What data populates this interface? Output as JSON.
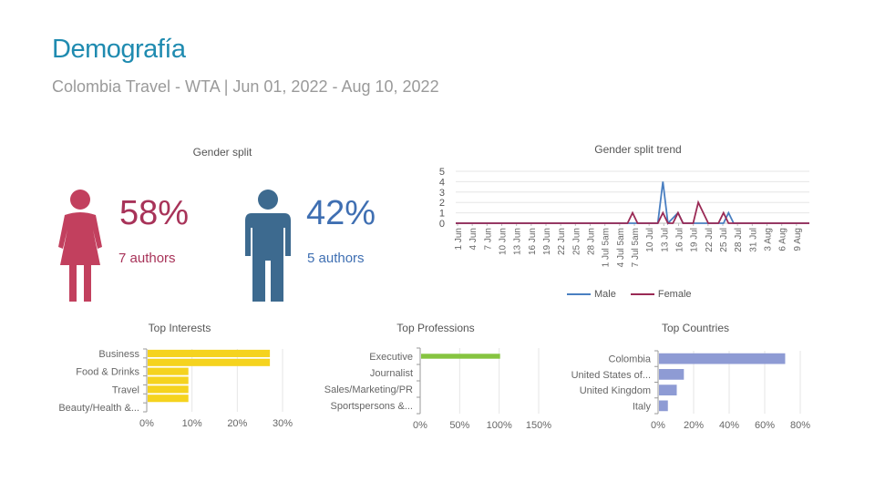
{
  "header": {
    "title": "Demografía",
    "subtitle": "Colombia Travel - WTA | Jun 01, 2022 - Aug 10, 2022"
  },
  "colors": {
    "female": "#c2405e",
    "male": "#3d6a8f",
    "female_text": "#a83359",
    "male_text": "#3f6fb2",
    "line_male": "#4a7fc1",
    "line_female": "#9a2a55",
    "interests_bar": "#f5d31e",
    "professions_bar": "#86c440",
    "countries_bar": "#8e9bd4"
  },
  "gender_split": {
    "title": "Gender split",
    "female": {
      "percent": "58%",
      "authors": "7 authors",
      "icon": "female-person-icon"
    },
    "male": {
      "percent": "42%",
      "authors": "5 authors",
      "icon": "male-person-icon"
    }
  },
  "chart_data": [
    {
      "type": "line",
      "title": "Gender split trend",
      "ylim": [
        0,
        5
      ],
      "yticks": [
        "0",
        "1",
        "2",
        "3",
        "4",
        "5"
      ],
      "x_tick_labels": [
        "1 Jun",
        "4 Jun",
        "7 Jun",
        "10 Jun",
        "13 Jun",
        "16 Jun",
        "19 Jun",
        "22 Jun",
        "25 Jun",
        "28 Jun",
        "1 Jul 5am",
        "4 Jul 5am",
        "7 Jul 5am",
        "10 Jul",
        "13 Jul",
        "16 Jul",
        "19 Jul",
        "22 Jul",
        "25 Jul",
        "28 Jul",
        "31 Jul",
        "3 Aug",
        "6 Aug",
        "9 Aug"
      ],
      "x_range_days": [
        0,
        70
      ],
      "series": [
        {
          "name": "Male",
          "points": [
            [
              0,
              0
            ],
            [
              40,
              0
            ],
            [
              41,
              4
            ],
            [
              42,
              0
            ],
            [
              44,
              1
            ],
            [
              45,
              0
            ],
            [
              53,
              0
            ],
            [
              54,
              1
            ],
            [
              55,
              0
            ],
            [
              70,
              0
            ]
          ]
        },
        {
          "name": "Female",
          "points": [
            [
              0,
              0
            ],
            [
              34,
              0
            ],
            [
              35,
              1
            ],
            [
              36,
              0
            ],
            [
              40,
              0
            ],
            [
              41,
              1
            ],
            [
              42,
              0
            ],
            [
              43,
              0
            ],
            [
              44,
              1
            ],
            [
              45,
              0
            ],
            [
              47,
              0
            ],
            [
              48,
              2
            ],
            [
              49,
              1
            ],
            [
              50,
              0
            ],
            [
              52,
              0
            ],
            [
              53,
              1
            ],
            [
              54,
              0
            ],
            [
              70,
              0
            ]
          ]
        }
      ],
      "legend_position": "bottom"
    },
    {
      "type": "bar",
      "orientation": "horizontal",
      "title": "Top Interests",
      "categories": [
        "Business",
        "",
        "Food & Drinks",
        "",
        "Travel",
        "",
        "Beauty/Health &..."
      ],
      "values": [
        0.27,
        0.27,
        0.09,
        0.09,
        0.09,
        0.09,
        0
      ],
      "xlim": [
        0,
        0.3
      ],
      "xticks": [
        "0%",
        "10%",
        "20%",
        "30%"
      ]
    },
    {
      "type": "bar",
      "orientation": "horizontal",
      "title": "Top Professions",
      "categories": [
        "Executive",
        "Journalist",
        "Sales/Marketing/PR",
        "Sportspersons &..."
      ],
      "values": [
        1.0,
        0,
        0,
        0
      ],
      "xlim": [
        0,
        1.5
      ],
      "xticks": [
        "0%",
        "50%",
        "100%",
        "150%"
      ]
    },
    {
      "type": "bar",
      "orientation": "horizontal",
      "title": "Top Countries",
      "categories": [
        "Colombia",
        "United States of...",
        "United Kingdom",
        "Italy"
      ],
      "values": [
        0.71,
        0.14,
        0.1,
        0.05
      ],
      "xlim": [
        0,
        0.8
      ],
      "xticks": [
        "0%",
        "20%",
        "40%",
        "60%",
        "80%"
      ]
    }
  ]
}
